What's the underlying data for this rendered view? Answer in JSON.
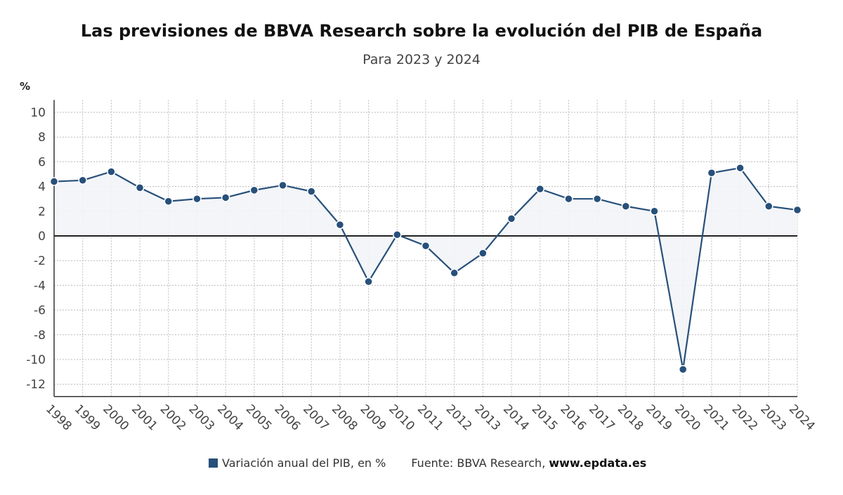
{
  "title": "Las previsiones de BBVA Research sobre la evolución del PIB de España",
  "subtitle": "Para 2023 y 2024",
  "legend_label": "Variación anual del PIB, en %",
  "source_label": "Fuente: BBVA Research,",
  "source_site": "www.epdata.es",
  "colors": {
    "series": "#27507a",
    "fill": "#f2f4f7",
    "grid": "#bbbbbb"
  },
  "chart_data": {
    "type": "line",
    "title": "Las previsiones de BBVA Research sobre la evolución del PIB de España",
    "subtitle": "Para 2023 y 2024",
    "ylabel": "%",
    "xlabel": "",
    "ylim": [
      -13,
      11
    ],
    "yticks": [
      10,
      8,
      6,
      4,
      2,
      0,
      -2,
      -4,
      -6,
      -8,
      -10,
      -12
    ],
    "grid": true,
    "legend_position": "bottom",
    "x": [
      "1998",
      "1999",
      "2000",
      "2001",
      "2002",
      "2003",
      "2004",
      "2005",
      "2006",
      "2007",
      "2008",
      "2009",
      "2010",
      "2011",
      "2012",
      "2013",
      "2014",
      "2015",
      "2016",
      "2017",
      "2018",
      "2019",
      "2020",
      "2021",
      "2022",
      "2023",
      "2024"
    ],
    "series": [
      {
        "name": "Variación anual del PIB, en %",
        "values": [
          4.4,
          4.5,
          5.2,
          3.9,
          2.8,
          3.0,
          3.1,
          3.7,
          4.1,
          3.6,
          0.9,
          -3.7,
          0.1,
          -0.8,
          -3.0,
          -1.4,
          1.4,
          3.8,
          3.0,
          3.0,
          2.4,
          2.0,
          -10.8,
          5.1,
          5.5,
          2.4,
          2.1
        ]
      }
    ]
  }
}
